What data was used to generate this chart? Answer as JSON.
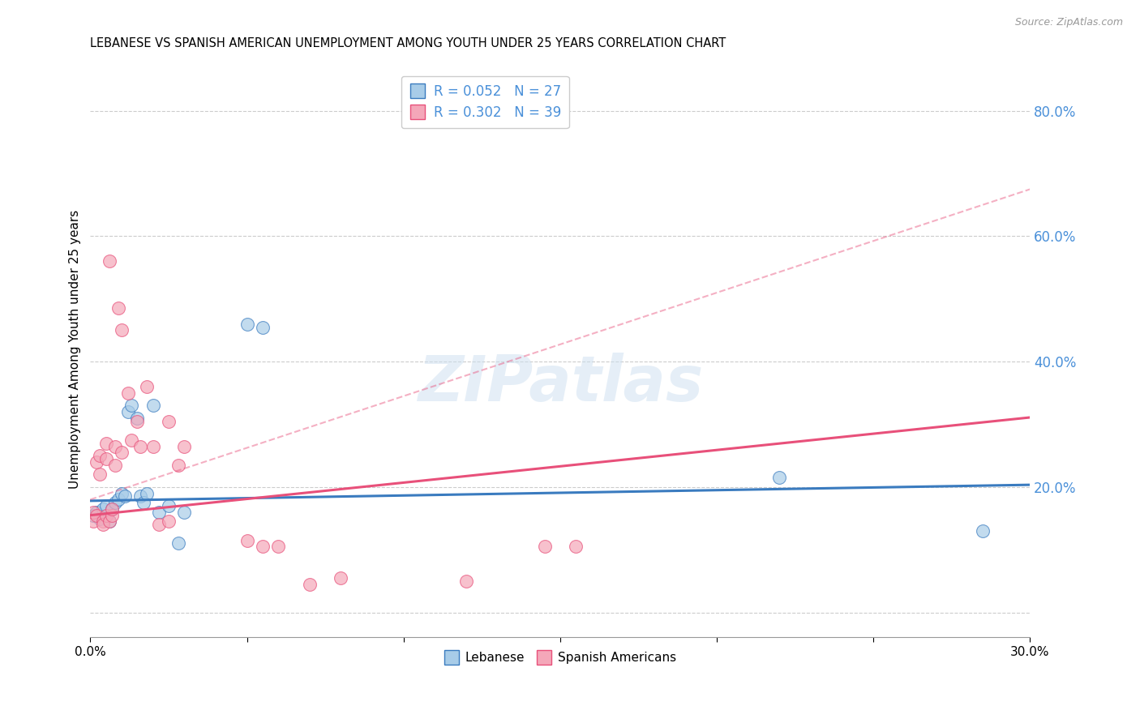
{
  "title": "LEBANESE VS SPANISH AMERICAN UNEMPLOYMENT AMONG YOUTH UNDER 25 YEARS CORRELATION CHART",
  "source": "Source: ZipAtlas.com",
  "ylabel": "Unemployment Among Youth under 25 years",
  "legend1_r": "R = 0.052",
  "legend1_n": "N = 27",
  "legend2_r": "R = 0.302",
  "legend2_n": "N = 39",
  "legend1_label": "Lebanese",
  "legend2_label": "Spanish Americans",
  "xmin": 0.0,
  "xmax": 0.3,
  "ymin": -0.04,
  "ymax": 0.88,
  "yticks_right": [
    0.0,
    0.2,
    0.4,
    0.6,
    0.8
  ],
  "gridline_y": [
    0.0,
    0.2,
    0.4,
    0.6,
    0.8
  ],
  "blue_color": "#a8cce8",
  "pink_color": "#f4a7b9",
  "blue_line_color": "#3a7bbf",
  "pink_line_color": "#e8507a",
  "right_axis_color": "#4a90d9",
  "watermark_color": "#ccdff0",
  "watermark_text": "ZIPatlas",
  "blue_intercept": 0.178,
  "blue_slope": 0.085,
  "pink_intercept": 0.155,
  "pink_slope": 0.52,
  "pink_dashed_intercept": 0.18,
  "pink_dashed_slope": 1.65,
  "blue_dots_x": [
    0.001,
    0.002,
    0.003,
    0.004,
    0.005,
    0.005,
    0.006,
    0.007,
    0.008,
    0.009,
    0.01,
    0.011,
    0.012,
    0.013,
    0.015,
    0.016,
    0.017,
    0.018,
    0.02,
    0.022,
    0.025,
    0.028,
    0.03,
    0.05,
    0.055,
    0.22,
    0.285
  ],
  "blue_dots_y": [
    0.155,
    0.16,
    0.15,
    0.165,
    0.155,
    0.17,
    0.145,
    0.165,
    0.175,
    0.18,
    0.19,
    0.185,
    0.32,
    0.33,
    0.31,
    0.185,
    0.175,
    0.19,
    0.33,
    0.16,
    0.17,
    0.11,
    0.16,
    0.46,
    0.455,
    0.215,
    0.13
  ],
  "pink_dots_x": [
    0.001,
    0.001,
    0.002,
    0.002,
    0.003,
    0.003,
    0.004,
    0.004,
    0.005,
    0.005,
    0.005,
    0.006,
    0.006,
    0.007,
    0.007,
    0.008,
    0.008,
    0.009,
    0.01,
    0.01,
    0.012,
    0.013,
    0.015,
    0.016,
    0.018,
    0.02,
    0.022,
    0.025,
    0.025,
    0.028,
    0.03,
    0.05,
    0.055,
    0.06,
    0.07,
    0.08,
    0.12,
    0.145,
    0.155
  ],
  "pink_dots_y": [
    0.145,
    0.16,
    0.155,
    0.24,
    0.22,
    0.25,
    0.145,
    0.14,
    0.155,
    0.245,
    0.27,
    0.145,
    0.56,
    0.155,
    0.165,
    0.235,
    0.265,
    0.485,
    0.255,
    0.45,
    0.35,
    0.275,
    0.305,
    0.265,
    0.36,
    0.265,
    0.14,
    0.145,
    0.305,
    0.235,
    0.265,
    0.115,
    0.105,
    0.105,
    0.045,
    0.055,
    0.05,
    0.105,
    0.105
  ]
}
